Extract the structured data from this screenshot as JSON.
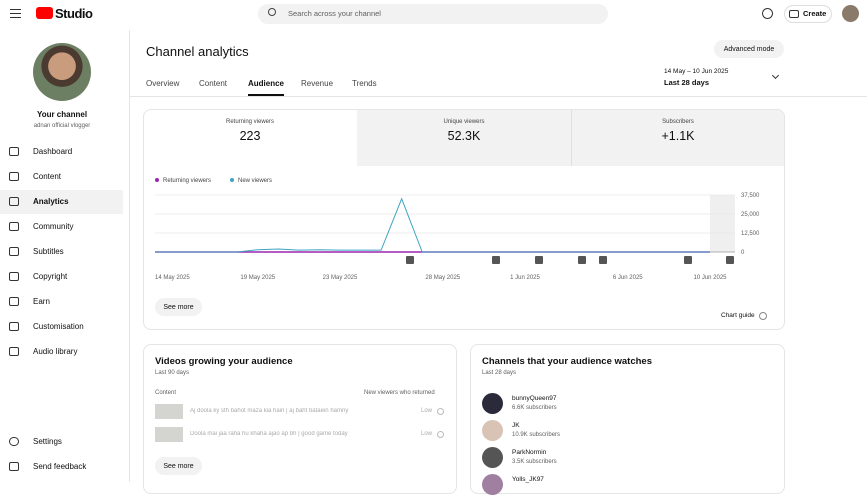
{
  "header": {
    "logo": "Studio",
    "search": "Search across your channel",
    "create": "Create"
  },
  "sidebar": {
    "channel_title": "Your channel",
    "channel_name": "adnan official vlogger",
    "nav": [
      "Dashboard",
      "Content",
      "Analytics",
      "Community",
      "Subtitles",
      "Copyright",
      "Earn",
      "Customisation",
      "Audio library"
    ],
    "footer": [
      "Settings",
      "Send feedback"
    ]
  },
  "main": {
    "title": "Channel analytics",
    "advanced": "Advanced mode",
    "tabs": [
      "Overview",
      "Content",
      "Audience",
      "Revenue",
      "Trends"
    ],
    "date_range": "14 May – 10 Jun 2025",
    "period": "Last 28 days",
    "metrics": [
      {
        "label": "Returning viewers",
        "value": "223"
      },
      {
        "label": "Unique viewers",
        "value": "52.3K"
      },
      {
        "label": "Subscribers",
        "value": "+1.1K"
      }
    ],
    "see_more": "See more",
    "chart_guide": "Chart guide"
  },
  "chart_data": {
    "type": "line",
    "categories": [
      "14 May 2025",
      null,
      null,
      null,
      null,
      "19 May 2025",
      null,
      null,
      null,
      "23 May 2025",
      null,
      null,
      null,
      null,
      "28 May 2025",
      null,
      null,
      null,
      "1 Jun 2025",
      null,
      null,
      null,
      null,
      "6 Jun 2025",
      null,
      null,
      null,
      "10 Jun 2025"
    ],
    "series": [
      {
        "name": "Returning viewers",
        "color": "#9c27b0",
        "values": [
          8,
          8,
          8,
          8,
          8,
          8,
          8,
          8,
          8,
          8,
          8,
          8,
          8,
          8,
          8,
          8,
          8,
          8,
          8,
          8,
          8,
          8,
          8,
          8,
          8,
          8,
          8,
          8
        ]
      },
      {
        "name": "New viewers",
        "color": "#3ea6c1",
        "values": [
          0,
          0,
          0,
          0,
          0,
          1500,
          2000,
          1200,
          1500,
          1200,
          1200,
          1200,
          35000,
          0,
          0,
          0,
          0,
          0,
          0,
          0,
          0,
          0,
          0,
          0,
          0,
          0,
          0,
          0
        ]
      }
    ],
    "ylim": [
      0,
      37500
    ],
    "yticks": [
      0,
      {
        "value": 12500,
        "label": "12,500"
      },
      {
        "value": 25000,
        "label": "25,000"
      },
      {
        "value": 37500,
        "label": "37,500"
      }
    ],
    "grid": true,
    "legend": "top-left"
  },
  "videos": {
    "title": "Videos growing your audience",
    "period": "Last 90 days",
    "col_content": "Content",
    "col_metric": "New viewers who returned",
    "rows": [
      {
        "title": "Aj doola ky sth bahot maza kia hain | aj baht bataein hamny",
        "value": "Low"
      },
      {
        "title": "Doola mai jaa raha hu khaha ajao ap bh | good game today",
        "value": "Low"
      }
    ],
    "see_more": "See more"
  },
  "channels": {
    "title": "Channels that your audience watches",
    "period": "Last 28 days",
    "items": [
      {
        "name": "bunnyQueen97",
        "subs": "6.6K subscribers"
      },
      {
        "name": "JK",
        "subs": "10.9K subscribers"
      },
      {
        "name": "ParkNormin",
        "subs": "3.5K subscribers"
      },
      {
        "name": "Yolls_JK97",
        "subs": ""
      }
    ]
  }
}
